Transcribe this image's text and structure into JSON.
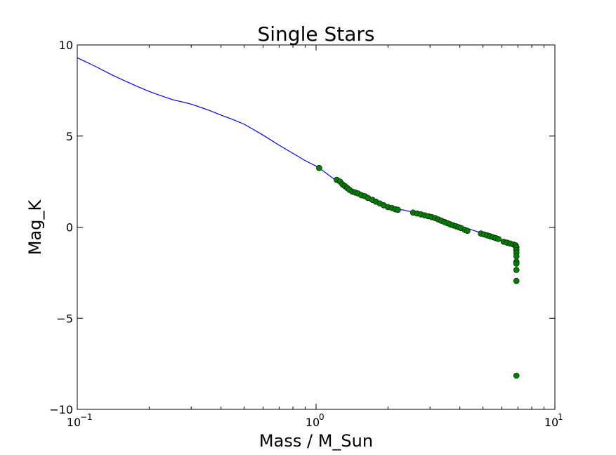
{
  "chart_data": {
    "type": "scatter",
    "title": "Single Stars",
    "xlabel": "Mass / M_Sun",
    "ylabel": "Mag_K",
    "xscale": "log",
    "xlim": [
      0.1,
      10
    ],
    "ylim": [
      -10,
      10
    ],
    "x_ticks": [
      {
        "value": 0.1,
        "base": "10",
        "exp": "−1"
      },
      {
        "value": 1,
        "base": "10",
        "exp": "0"
      },
      {
        "value": 10,
        "base": "10",
        "exp": "1"
      }
    ],
    "y_ticks": [
      {
        "value": 10,
        "label": "10"
      },
      {
        "value": 5,
        "label": "5"
      },
      {
        "value": 0,
        "label": "0"
      },
      {
        "value": -5,
        "label": "−5"
      },
      {
        "value": -10,
        "label": "−10"
      }
    ],
    "grid": false,
    "legend": "none",
    "colors": {
      "line": "#0000ff",
      "points": "#008000",
      "point_edge": "#000000"
    },
    "series": [
      {
        "kind": "line",
        "x": [
          0.1,
          0.12,
          0.14,
          0.16,
          0.18,
          0.2,
          0.22,
          0.25,
          0.28,
          0.3,
          0.35,
          0.4,
          0.45,
          0.5,
          0.6,
          0.7,
          0.8,
          0.9,
          1.0,
          1.03,
          1.2,
          1.4,
          1.7,
          2.0,
          2.3,
          2.6,
          3.0,
          3.5,
          4.0,
          4.5,
          5.0,
          5.5,
          6.0,
          6.5,
          6.9
        ],
        "y": [
          9.3,
          8.8,
          8.35,
          8.0,
          7.7,
          7.45,
          7.25,
          7.0,
          6.85,
          6.75,
          6.45,
          6.15,
          5.9,
          5.65,
          5.05,
          4.5,
          4.05,
          3.65,
          3.35,
          3.25,
          2.6,
          2.0,
          1.5,
          1.1,
          0.95,
          0.8,
          0.55,
          0.3,
          0.05,
          -0.15,
          -0.35,
          -0.55,
          -0.75,
          -0.9,
          -1.0
        ]
      },
      {
        "kind": "scatter",
        "x": [
          1.03,
          1.22,
          1.26,
          1.29,
          1.32,
          1.35,
          1.38,
          1.42,
          1.46,
          1.5,
          1.55,
          1.6,
          1.65,
          1.72,
          1.78,
          1.85,
          1.92,
          2.0,
          2.08,
          2.15,
          2.2,
          2.55,
          2.65,
          2.75,
          2.85,
          2.95,
          3.05,
          3.15,
          3.25,
          3.35,
          3.45,
          3.55,
          3.65,
          3.75,
          3.85,
          3.95,
          4.05,
          4.2,
          4.3,
          4.9,
          5.05,
          5.2,
          5.35,
          5.5,
          5.65,
          5.8,
          6.1,
          6.3,
          6.5,
          6.7,
          6.85,
          6.9,
          6.9,
          6.9,
          6.9,
          6.9,
          6.9,
          6.9,
          6.9,
          6.9
        ],
        "y": [
          3.25,
          2.6,
          2.5,
          2.35,
          2.25,
          2.15,
          2.05,
          1.95,
          1.9,
          1.85,
          1.75,
          1.7,
          1.6,
          1.5,
          1.4,
          1.3,
          1.2,
          1.1,
          1.05,
          0.98,
          0.95,
          0.8,
          0.75,
          0.7,
          0.65,
          0.6,
          0.55,
          0.5,
          0.42,
          0.35,
          0.28,
          0.22,
          0.15,
          0.1,
          0.05,
          0.0,
          -0.05,
          -0.15,
          -0.2,
          -0.35,
          -0.4,
          -0.45,
          -0.5,
          -0.55,
          -0.6,
          -0.65,
          -0.8,
          -0.85,
          -0.9,
          -0.95,
          -1.0,
          -1.1,
          -1.25,
          -1.4,
          -1.6,
          -1.9,
          -2.0,
          -2.35,
          -2.95,
          -8.15
        ]
      }
    ]
  }
}
